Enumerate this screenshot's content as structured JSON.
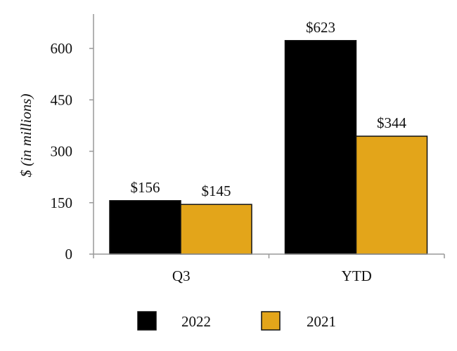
{
  "chart_data": {
    "type": "bar",
    "categories": [
      "Q3",
      "YTD"
    ],
    "series": [
      {
        "name": "2022",
        "values": [
          156,
          623
        ],
        "labels": [
          "$156",
          "$623"
        ],
        "color": "#000000"
      },
      {
        "name": "2021",
        "values": [
          145,
          344
        ],
        "labels": [
          "$145",
          "$344"
        ],
        "color": "#E3A51A"
      }
    ],
    "ylabel": "$ (in millions)",
    "ylim": [
      0,
      650
    ],
    "yticks": [
      0,
      150,
      300,
      450,
      600
    ],
    "grid": false,
    "legend": "bottom"
  }
}
